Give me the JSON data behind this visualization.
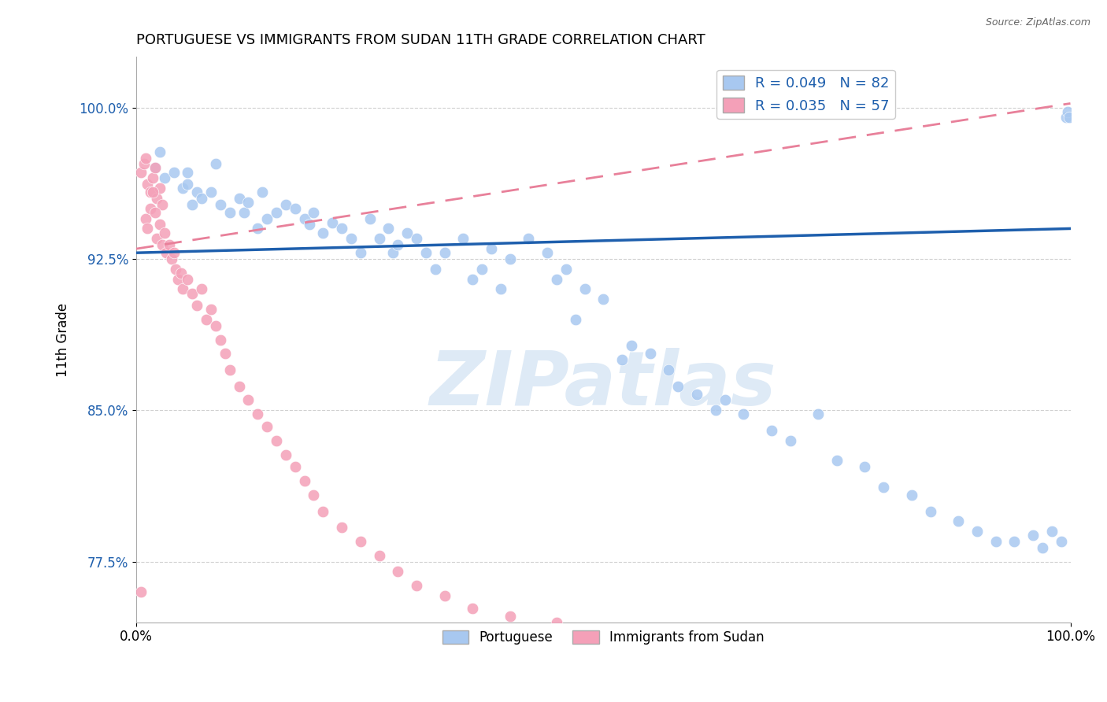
{
  "title": "PORTUGUESE VS IMMIGRANTS FROM SUDAN 11TH GRADE CORRELATION CHART",
  "source": "Source: ZipAtlas.com",
  "ylabel": "11th Grade",
  "blue_label": "Portuguese",
  "pink_label": "Immigrants from Sudan",
  "blue_R": 0.049,
  "blue_N": 82,
  "pink_R": 0.035,
  "pink_N": 57,
  "blue_color": "#A8C8F0",
  "pink_color": "#F4A0B8",
  "blue_line_color": "#1E5FAD",
  "pink_line_color": "#E8809A",
  "xlim": [
    0.0,
    1.0
  ],
  "ylim": [
    0.745,
    1.025
  ],
  "yticks": [
    0.775,
    0.85,
    0.925,
    1.0
  ],
  "ytick_labels": [
    "77.5%",
    "85.0%",
    "92.5%",
    "100.0%"
  ],
  "watermark": "ZIPatlas",
  "background_color": "#ffffff",
  "blue_x": [
    0.02,
    0.025,
    0.03,
    0.04,
    0.05,
    0.055,
    0.06,
    0.065,
    0.07,
    0.08,
    0.09,
    0.1,
    0.11,
    0.115,
    0.12,
    0.13,
    0.135,
    0.14,
    0.15,
    0.16,
    0.17,
    0.18,
    0.185,
    0.19,
    0.2,
    0.21,
    0.22,
    0.23,
    0.24,
    0.25,
    0.26,
    0.27,
    0.275,
    0.28,
    0.29,
    0.3,
    0.31,
    0.32,
    0.33,
    0.35,
    0.36,
    0.37,
    0.38,
    0.39,
    0.4,
    0.42,
    0.44,
    0.45,
    0.46,
    0.47,
    0.48,
    0.5,
    0.52,
    0.53,
    0.55,
    0.57,
    0.58,
    0.6,
    0.62,
    0.63,
    0.65,
    0.68,
    0.7,
    0.73,
    0.75,
    0.78,
    0.8,
    0.83,
    0.85,
    0.88,
    0.9,
    0.92,
    0.94,
    0.96,
    0.97,
    0.98,
    0.99,
    0.995,
    0.997,
    0.999,
    0.055,
    0.085
  ],
  "blue_y": [
    0.97,
    0.978,
    0.965,
    0.968,
    0.96,
    0.962,
    0.952,
    0.958,
    0.955,
    0.958,
    0.952,
    0.948,
    0.955,
    0.948,
    0.953,
    0.94,
    0.958,
    0.945,
    0.948,
    0.952,
    0.95,
    0.945,
    0.942,
    0.948,
    0.938,
    0.943,
    0.94,
    0.935,
    0.928,
    0.945,
    0.935,
    0.94,
    0.928,
    0.932,
    0.938,
    0.935,
    0.928,
    0.92,
    0.928,
    0.935,
    0.915,
    0.92,
    0.93,
    0.91,
    0.925,
    0.935,
    0.928,
    0.915,
    0.92,
    0.895,
    0.91,
    0.905,
    0.875,
    0.882,
    0.878,
    0.87,
    0.862,
    0.858,
    0.85,
    0.855,
    0.848,
    0.84,
    0.835,
    0.848,
    0.825,
    0.822,
    0.812,
    0.808,
    0.8,
    0.795,
    0.79,
    0.785,
    0.785,
    0.788,
    0.782,
    0.79,
    0.785,
    0.995,
    0.998,
    0.995,
    0.968,
    0.972
  ],
  "pink_x": [
    0.005,
    0.008,
    0.01,
    0.012,
    0.015,
    0.018,
    0.02,
    0.022,
    0.025,
    0.028,
    0.01,
    0.012,
    0.015,
    0.018,
    0.02,
    0.022,
    0.025,
    0.028,
    0.03,
    0.032,
    0.035,
    0.038,
    0.04,
    0.042,
    0.045,
    0.048,
    0.05,
    0.055,
    0.06,
    0.065,
    0.07,
    0.075,
    0.08,
    0.085,
    0.09,
    0.095,
    0.1,
    0.11,
    0.12,
    0.13,
    0.14,
    0.15,
    0.16,
    0.17,
    0.18,
    0.19,
    0.2,
    0.22,
    0.24,
    0.26,
    0.28,
    0.3,
    0.33,
    0.36,
    0.4,
    0.45,
    0.005
  ],
  "pink_y": [
    0.968,
    0.972,
    0.975,
    0.962,
    0.958,
    0.965,
    0.97,
    0.955,
    0.96,
    0.952,
    0.945,
    0.94,
    0.95,
    0.958,
    0.948,
    0.935,
    0.942,
    0.932,
    0.938,
    0.928,
    0.932,
    0.925,
    0.928,
    0.92,
    0.915,
    0.918,
    0.91,
    0.915,
    0.908,
    0.902,
    0.91,
    0.895,
    0.9,
    0.892,
    0.885,
    0.878,
    0.87,
    0.862,
    0.855,
    0.848,
    0.842,
    0.835,
    0.828,
    0.822,
    0.815,
    0.808,
    0.8,
    0.792,
    0.785,
    0.778,
    0.77,
    0.763,
    0.758,
    0.752,
    0.748,
    0.745,
    0.76
  ]
}
